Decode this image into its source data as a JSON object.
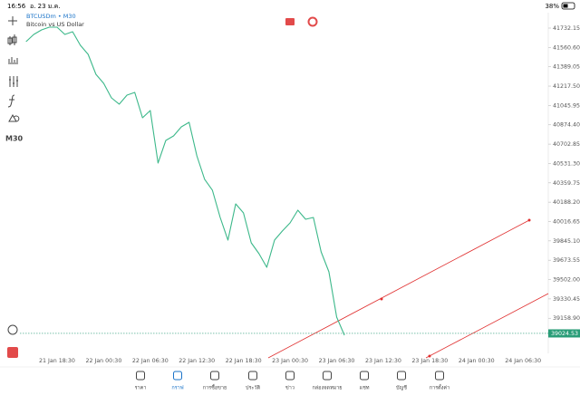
{
  "status_bar": {
    "time": "16:56",
    "date": "อ. 23 ม.ค.",
    "battery": "38%"
  },
  "symbol": {
    "name": "BTCUSDm • M30",
    "description": "Bitcoin vs US Dollar"
  },
  "timeframe": "M30",
  "chart_data": {
    "type": "line",
    "categories": [
      null,
      null,
      null,
      null,
      "21 Jan 18:30",
      null,
      null,
      null,
      null,
      null,
      "22 Jan 00:30",
      null,
      null,
      null,
      null,
      null,
      "22 Jan 06:30",
      null,
      null,
      null,
      null,
      null,
      "22 Jan 12:30",
      null,
      null,
      null,
      null,
      null,
      "22 Jan 18:30",
      null,
      null,
      null,
      null,
      null,
      "23 Jan 00:30",
      null,
      null,
      null,
      null,
      null,
      "23 Jan 06:30",
      null,
      null,
      null,
      null,
      null,
      "23 Jan 12:30",
      null,
      null,
      null,
      null,
      null,
      "23 Jan 18:30",
      null,
      null,
      null,
      null,
      null,
      "24 Jan 00:30",
      null,
      null,
      null,
      null,
      null,
      "24 Jan 06:30",
      null,
      null
    ],
    "series": [
      {
        "color": "#3cb88a",
        "values": [
          41611.6,
          41675.9,
          41716.1,
          41740.2,
          41740.2,
          41675.9,
          41700.0,
          41579.5,
          41499.2,
          41322.4,
          41242.1,
          41113.5,
          41057.3,
          41137.7,
          41161.6,
          40936.7,
          41000.9,
          40535.0,
          40735.8,
          40775.9,
          40856.3,
          40896.5,
          40599.2,
          40390.3,
          40293.9,
          40052.8,
          39851.9,
          40173.3,
          40093.0,
          39827.8,
          39731.4,
          39610.9,
          39851.9,
          39932.3,
          40004.6,
          40117.1,
          40036.8,
          40052.8,
          39747.5,
          39570.7,
          39168.9,
          39008.2,
          null,
          null,
          null,
          null,
          null,
          null,
          null,
          null,
          null,
          null,
          null,
          null,
          null,
          null,
          null,
          null,
          null,
          null,
          null,
          null,
          null,
          null,
          null,
          null,
          null
        ]
      }
    ],
    "ylim": [
      38847.5,
      41868.7
    ],
    "yticks": [
      41732.15,
      {
        "value": 41560.6,
        "label": "41560.60"
      },
      41389.05,
      {
        "value": 41217.5,
        "label": "41217.50"
      },
      41045.95,
      {
        "value": 40874.4,
        "label": "40874.40"
      },
      40702.85,
      {
        "value": 40531.3,
        "label": "40531.30"
      },
      40359.75,
      {
        "value": 40188.2,
        "label": "40188.20"
      },
      40016.65,
      {
        "value": 39845.1,
        "label": "39845.10"
      },
      39673.55,
      {
        "value": 39502.0,
        "label": "39502.00"
      },
      39330.45,
      {
        "value": 39158.9,
        "label": "39158.90"
      }
    ],
    "current_price": 39024.53
  },
  "tab_bar": {
    "items": [
      "ราคา",
      "กราฟ",
      "การซื้อขาย",
      "ประวัติ",
      "ข่าว",
      "กล่องจดหมาย",
      "แชท",
      "บัญชี",
      "การตั้งค่า"
    ]
  }
}
